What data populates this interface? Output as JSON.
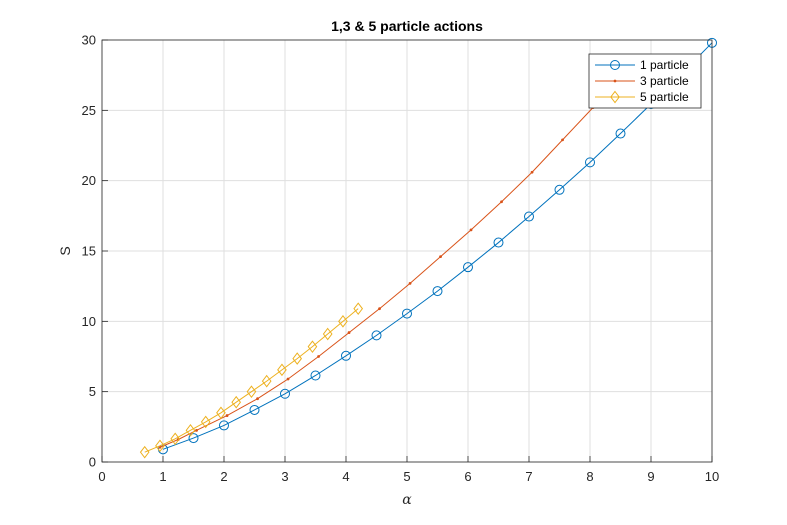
{
  "chart_data": {
    "type": "line",
    "title": "1,3 & 5 particle actions",
    "xlabel": "α",
    "ylabel": "S",
    "xlim": [
      0,
      10
    ],
    "ylim": [
      0,
      30
    ],
    "xticks": [
      "0",
      "1",
      "2",
      "3",
      "4",
      "5",
      "6",
      "7",
      "8",
      "9",
      "10"
    ],
    "yticks": [
      "0",
      "5",
      "10",
      "15",
      "20",
      "25",
      "30"
    ],
    "grid": true,
    "legend_location": "top-right",
    "series": [
      {
        "name": "1 particle",
        "color": "#0072BD",
        "marker": "circle",
        "x": [
          1,
          1.5,
          2,
          2.5,
          3,
          3.5,
          4,
          4.5,
          5,
          5.5,
          6,
          6.5,
          7,
          7.5,
          8,
          8.5,
          9,
          9.5,
          10
        ],
        "y": [
          0.9,
          1.7,
          2.6,
          3.7,
          4.85,
          6.15,
          7.55,
          9.0,
          10.55,
          12.15,
          13.85,
          15.6,
          17.45,
          19.35,
          21.3,
          23.35,
          25.45,
          27.6,
          29.8
        ]
      },
      {
        "name": "3 particle",
        "color": "#D95319",
        "marker": "point",
        "x": [
          0.95,
          1.25,
          1.55,
          2.05,
          2.55,
          3.05,
          3.55,
          4.05,
          4.55,
          5.05,
          5.55,
          6.05,
          6.55,
          7.05,
          7.55,
          8.05
        ],
        "y": [
          1.05,
          1.6,
          2.25,
          3.3,
          4.5,
          5.9,
          7.5,
          9.2,
          10.9,
          12.7,
          14.6,
          16.5,
          18.5,
          20.6,
          22.9,
          25.2
        ]
      },
      {
        "name": "5 particle",
        "color": "#EDB120",
        "marker": "diamond",
        "x": [
          0.7,
          0.95,
          1.2,
          1.45,
          1.7,
          1.95,
          2.2,
          2.45,
          2.7,
          2.95,
          3.2,
          3.45,
          3.7,
          3.95,
          4.2
        ],
        "y": [
          0.7,
          1.15,
          1.65,
          2.25,
          2.85,
          3.5,
          4.25,
          5.0,
          5.75,
          6.55,
          7.35,
          8.2,
          9.1,
          10.0,
          10.9
        ]
      }
    ]
  }
}
